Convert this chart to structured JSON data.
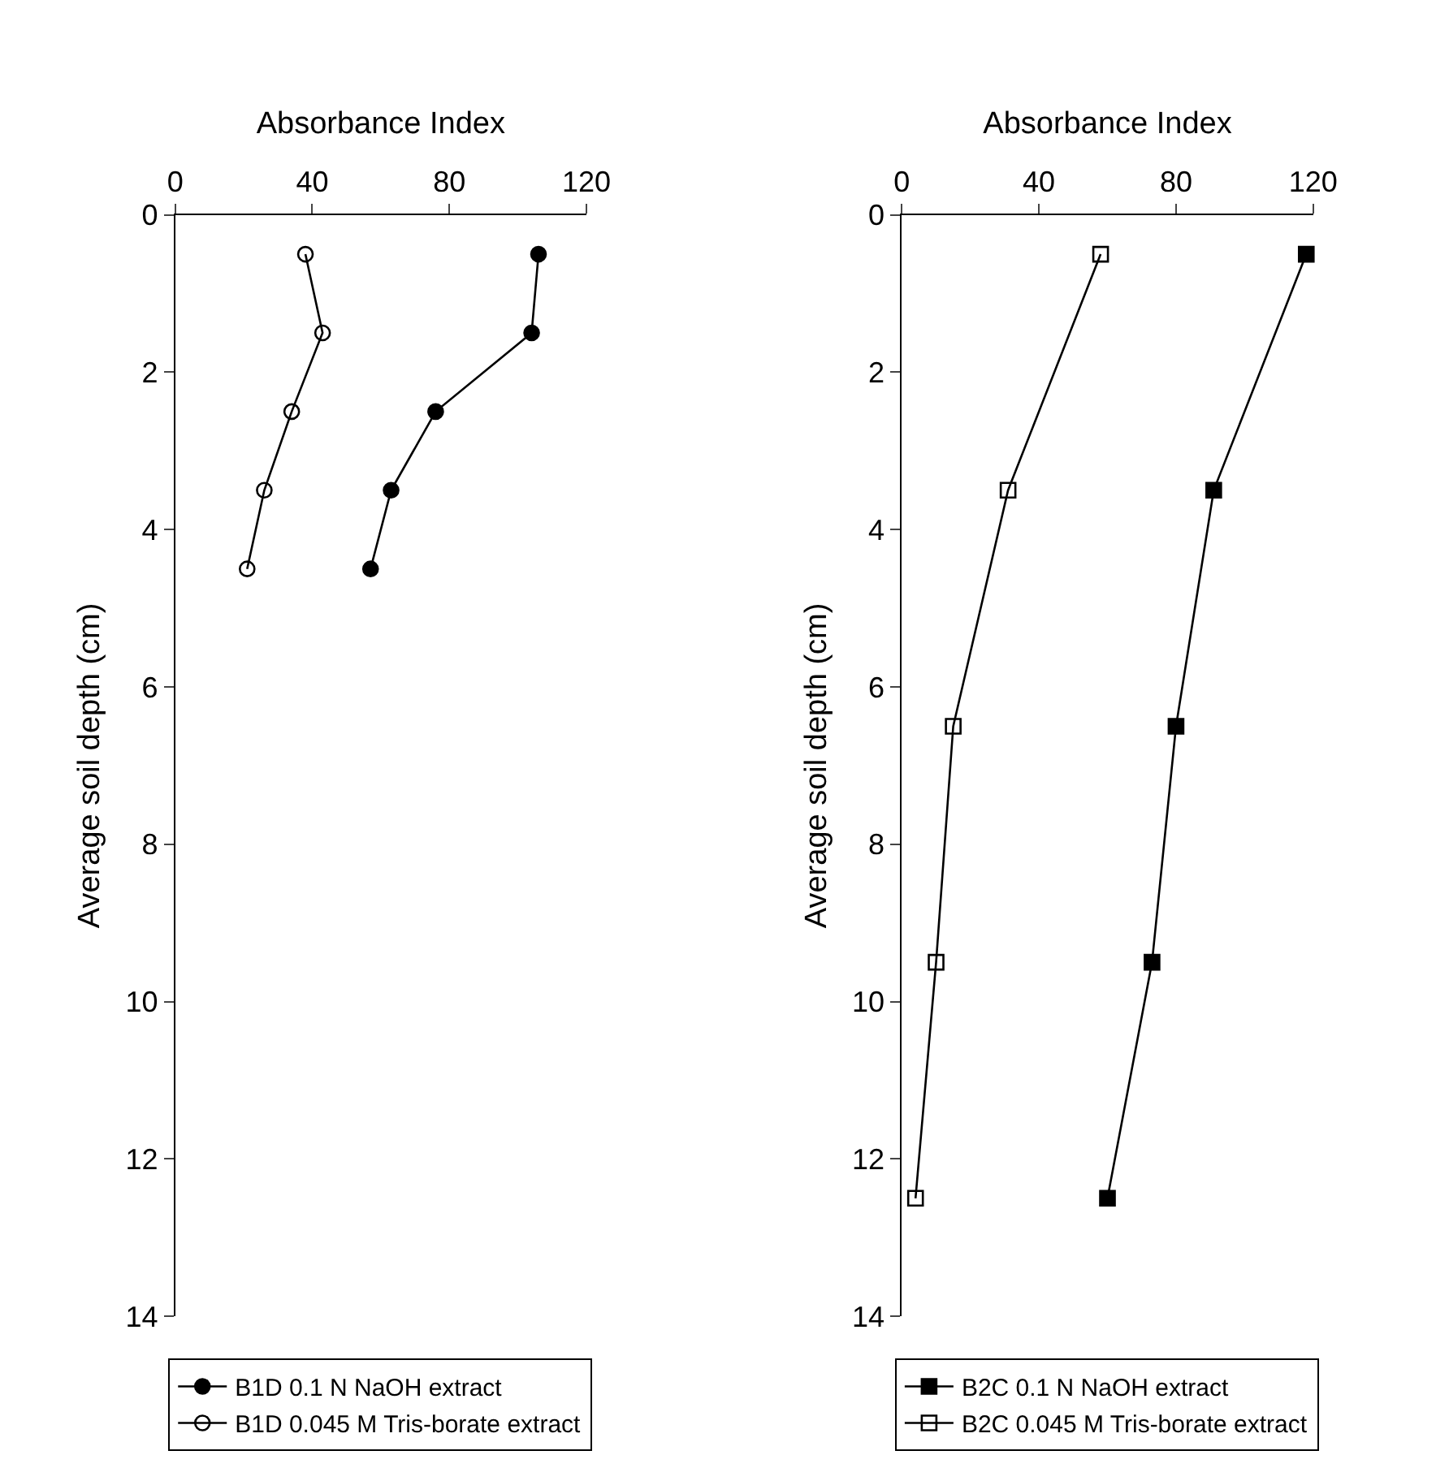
{
  "chart_data": [
    {
      "type": "line",
      "xlabel": "Absorbance Index",
      "ylabel": "Average soil depth (cm)",
      "xlim": [
        0,
        120
      ],
      "xticks": [
        0,
        40,
        80,
        120
      ],
      "ylim": [
        14,
        0
      ],
      "yticks": [
        0,
        2,
        4,
        6,
        8,
        10,
        12,
        14
      ],
      "legend": "bottom",
      "line_style": "solid",
      "series": [
        {
          "name": "B1D 0.1 N NaOH extract",
          "color": "#000000",
          "marker": "circle",
          "x": [
            106,
            104,
            76,
            63,
            57
          ],
          "values": [
            0.5,
            1.5,
            2.5,
            3.5,
            4.5
          ]
        },
        {
          "name": "B1D 0.045 M Tris-borate extract",
          "color": "#000000",
          "marker": "circle-open",
          "x": [
            38,
            43,
            34,
            26,
            21
          ],
          "values": [
            0.5,
            1.5,
            2.5,
            3.5,
            4.5
          ]
        }
      ]
    },
    {
      "type": "line",
      "xlabel": "Absorbance Index",
      "ylabel": "Average soil depth (cm)",
      "xlim": [
        0,
        120
      ],
      "xticks": [
        0,
        40,
        80,
        120
      ],
      "ylim": [
        14,
        0
      ],
      "yticks": [
        0,
        2,
        4,
        6,
        8,
        10,
        12,
        14
      ],
      "legend": "bottom",
      "line_style": "solid",
      "series": [
        {
          "name": "B2C 0.1 N NaOH extract",
          "color": "#000000",
          "marker": "square",
          "x": [
            118,
            91,
            80,
            73,
            60
          ],
          "values": [
            0.5,
            3.5,
            6.5,
            9.5,
            12.5
          ]
        },
        {
          "name": "B2C 0.045 M Tris-borate extract",
          "color": "#000000",
          "marker": "square-open",
          "x": [
            58,
            31,
            15,
            10,
            4
          ],
          "values": [
            0.5,
            3.5,
            6.5,
            9.5,
            12.5
          ]
        }
      ]
    }
  ]
}
